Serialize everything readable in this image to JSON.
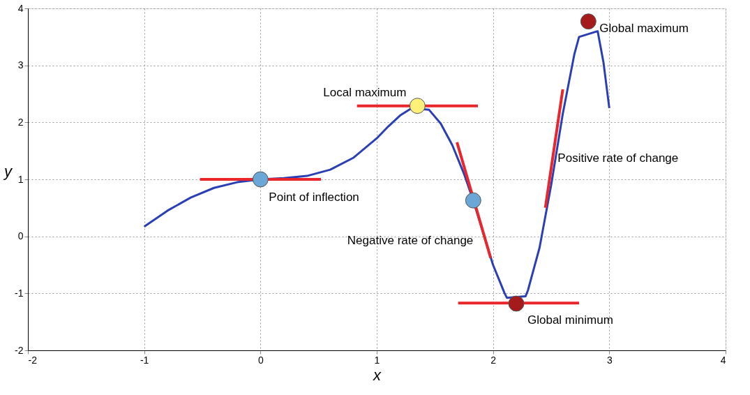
{
  "chart_data": {
    "type": "line",
    "xlabel": "x",
    "ylabel": "y",
    "xlim": [
      -2,
      4
    ],
    "ylim": [
      -2,
      4
    ],
    "xticks": [
      -2,
      -1,
      0,
      1,
      2,
      3,
      4
    ],
    "yticks": [
      -2,
      -1,
      0,
      1,
      2,
      3,
      4
    ],
    "grid": true,
    "legend": false,
    "series": [
      {
        "color": "#2b3fb4",
        "x": [
          -1,
          -0.8,
          -0.6,
          -0.4,
          -0.2,
          0,
          0.2,
          0.4,
          0.6,
          0.8,
          1.0,
          1.1,
          1.2,
          1.3,
          1.45,
          1.55,
          1.65,
          1.75,
          1.83,
          2.0,
          2.1,
          2.12,
          2.28,
          2.3,
          2.4,
          2.5,
          2.6,
          2.7,
          2.74,
          2.9,
          2.95,
          3.0
        ],
        "values": [
          0.17,
          0.45,
          0.68,
          0.85,
          0.95,
          1.0,
          1.02,
          1.06,
          1.17,
          1.38,
          1.72,
          1.93,
          2.12,
          2.25,
          2.22,
          1.98,
          1.6,
          1.1,
          0.63,
          -0.5,
          -1.0,
          -1.08,
          -1.05,
          -0.95,
          -0.2,
          0.9,
          2.15,
          3.2,
          3.5,
          3.6,
          3.05,
          2.25
        ]
      },
      {
        "type": "line",
        "color": "#e8262b",
        "x": [
          -0.52,
          0.52
        ],
        "values": [
          1.0,
          1.0
        ]
      },
      {
        "type": "line",
        "color": "#e8262b",
        "x": [
          0.83,
          1.87
        ],
        "values": [
          2.29,
          2.29
        ]
      },
      {
        "type": "line",
        "color": "#e8262b",
        "x": [
          1.69,
          1.98
        ],
        "values": [
          1.65,
          -0.38
        ]
      },
      {
        "type": "line",
        "color": "#e8262b",
        "x": [
          1.7,
          2.74
        ],
        "values": [
          -1.17,
          -1.17
        ]
      },
      {
        "type": "line",
        "color": "#e8262b",
        "x": [
          2.45,
          2.6
        ],
        "values": [
          0.5,
          2.58
        ]
      },
      {
        "type": "scatter",
        "marker": "circle",
        "x": [
          0,
          1.35,
          1.83,
          2.2,
          2.82
        ],
        "values": [
          1.0,
          2.29,
          0.63,
          -1.18,
          3.77
        ],
        "colors": [
          "#6aa6d6",
          "#fff07a",
          "#6aa6d6",
          "#a51a1a",
          "#a51a1a"
        ]
      }
    ],
    "annotations": [
      {
        "text": "Local maximum",
        "x": 1.35,
        "y": 2.29
      },
      {
        "text": "Global maximum",
        "x": 2.82,
        "y": 3.77
      },
      {
        "text": "Point of inflection",
        "x": 0,
        "y": 1.0
      },
      {
        "text": "Negative rate of change",
        "x": 1.83,
        "y": 0.63
      },
      {
        "text": "Global minimum",
        "x": 2.2,
        "y": -1.18
      },
      {
        "text": "Positive rate of change",
        "x": 2.52,
        "y": 1.54
      }
    ]
  }
}
